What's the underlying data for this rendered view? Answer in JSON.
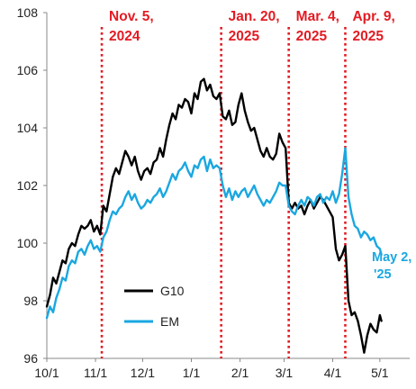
{
  "chart_data": {
    "type": "line",
    "title": "",
    "xlabel": "",
    "ylabel": "",
    "x_range": [
      "2024-10-01",
      "2025-05-20"
    ],
    "ylim": [
      96,
      108
    ],
    "y_ticks": [
      96,
      98,
      100,
      102,
      104,
      106,
      108
    ],
    "x_ticks": [
      {
        "date": "2024-10-01",
        "label": "10/1"
      },
      {
        "date": "2024-11-01",
        "label": "11/1"
      },
      {
        "date": "2024-12-01",
        "label": "12/1"
      },
      {
        "date": "2025-01-01",
        "label": "1/1"
      },
      {
        "date": "2025-02-01",
        "label": "2/1"
      },
      {
        "date": "2025-03-01",
        "label": "3/1"
      },
      {
        "date": "2025-04-01",
        "label": "4/1"
      },
      {
        "date": "2025-05-01",
        "label": "5/1"
      }
    ],
    "grid": false,
    "legend_position": "lower-center",
    "annotations": [
      {
        "date": "2024-11-05",
        "line1": "Nov. 5,",
        "line2": "2024"
      },
      {
        "date": "2025-01-20",
        "line1": "Jan. 20,",
        "line2": "2025"
      },
      {
        "date": "2025-03-04",
        "line1": "Mar. 4,",
        "line2": "2025"
      },
      {
        "date": "2025-04-09",
        "line1": "Apr. 9,",
        "line2": "2025"
      }
    ],
    "end_label": {
      "line1": "May 2,",
      "line2": "'25",
      "series": "EM"
    },
    "series": [
      {
        "name": "G10",
        "color": "#000000",
        "points": [
          [
            "2024-10-01",
            97.8
          ],
          [
            "2024-10-03",
            98.2
          ],
          [
            "2024-10-05",
            98.8
          ],
          [
            "2024-10-07",
            98.6
          ],
          [
            "2024-10-09",
            99.0
          ],
          [
            "2024-10-11",
            99.4
          ],
          [
            "2024-10-13",
            99.3
          ],
          [
            "2024-10-15",
            99.8
          ],
          [
            "2024-10-17",
            100.0
          ],
          [
            "2024-10-19",
            99.9
          ],
          [
            "2024-10-21",
            100.3
          ],
          [
            "2024-10-23",
            100.6
          ],
          [
            "2024-10-25",
            100.5
          ],
          [
            "2024-10-27",
            100.6
          ],
          [
            "2024-10-29",
            100.8
          ],
          [
            "2024-10-31",
            100.4
          ],
          [
            "2024-11-02",
            100.6
          ],
          [
            "2024-11-04",
            100.3
          ],
          [
            "2024-11-06",
            101.3
          ],
          [
            "2024-11-08",
            101.1
          ],
          [
            "2024-11-10",
            101.7
          ],
          [
            "2024-11-12",
            102.3
          ],
          [
            "2024-11-14",
            102.6
          ],
          [
            "2024-11-16",
            102.4
          ],
          [
            "2024-11-18",
            102.8
          ],
          [
            "2024-11-20",
            103.2
          ],
          [
            "2024-11-22",
            103.0
          ],
          [
            "2024-11-24",
            102.7
          ],
          [
            "2024-11-26",
            103.0
          ],
          [
            "2024-11-28",
            102.5
          ],
          [
            "2024-11-30",
            102.2
          ],
          [
            "2024-12-02",
            102.5
          ],
          [
            "2024-12-04",
            102.6
          ],
          [
            "2024-12-06",
            102.4
          ],
          [
            "2024-12-08",
            102.8
          ],
          [
            "2024-12-10",
            102.9
          ],
          [
            "2024-12-12",
            103.3
          ],
          [
            "2024-12-14",
            103.0
          ],
          [
            "2024-12-16",
            103.6
          ],
          [
            "2024-12-18",
            104.1
          ],
          [
            "2024-12-20",
            104.5
          ],
          [
            "2024-12-22",
            104.3
          ],
          [
            "2024-12-24",
            104.8
          ],
          [
            "2024-12-26",
            104.7
          ],
          [
            "2024-12-28",
            105.0
          ],
          [
            "2024-12-30",
            104.9
          ],
          [
            "2025-01-01",
            104.5
          ],
          [
            "2025-01-03",
            105.2
          ],
          [
            "2025-01-05",
            105.0
          ],
          [
            "2025-01-07",
            105.6
          ],
          [
            "2025-01-09",
            105.7
          ],
          [
            "2025-01-11",
            105.3
          ],
          [
            "2025-01-13",
            105.5
          ],
          [
            "2025-01-15",
            105.1
          ],
          [
            "2025-01-17",
            105.0
          ],
          [
            "2025-01-19",
            105.2
          ],
          [
            "2025-01-21",
            104.4
          ],
          [
            "2025-01-23",
            104.3
          ],
          [
            "2025-01-25",
            104.6
          ],
          [
            "2025-01-27",
            104.1
          ],
          [
            "2025-01-29",
            104.2
          ],
          [
            "2025-01-31",
            104.8
          ],
          [
            "2025-02-02",
            105.2
          ],
          [
            "2025-02-04",
            104.6
          ],
          [
            "2025-02-06",
            104.2
          ],
          [
            "2025-02-08",
            103.9
          ],
          [
            "2025-02-10",
            104.0
          ],
          [
            "2025-02-12",
            103.6
          ],
          [
            "2025-02-14",
            103.2
          ],
          [
            "2025-02-16",
            103.0
          ],
          [
            "2025-02-18",
            103.3
          ],
          [
            "2025-02-20",
            103.0
          ],
          [
            "2025-02-22",
            102.9
          ],
          [
            "2025-02-24",
            103.1
          ],
          [
            "2025-02-26",
            103.8
          ],
          [
            "2025-02-28",
            103.5
          ],
          [
            "2025-03-02",
            103.3
          ],
          [
            "2025-03-04",
            101.4
          ],
          [
            "2025-03-06",
            101.2
          ],
          [
            "2025-03-08",
            101.4
          ],
          [
            "2025-03-10",
            101.2
          ],
          [
            "2025-03-12",
            101.3
          ],
          [
            "2025-03-14",
            101.0
          ],
          [
            "2025-03-16",
            101.3
          ],
          [
            "2025-03-18",
            101.5
          ],
          [
            "2025-03-20",
            101.2
          ],
          [
            "2025-03-22",
            101.4
          ],
          [
            "2025-03-24",
            101.6
          ],
          [
            "2025-03-26",
            101.5
          ],
          [
            "2025-03-28",
            101.3
          ],
          [
            "2025-03-30",
            101.1
          ],
          [
            "2025-04-01",
            100.9
          ],
          [
            "2025-04-03",
            99.8
          ],
          [
            "2025-04-05",
            99.4
          ],
          [
            "2025-04-07",
            99.6
          ],
          [
            "2025-04-09",
            99.9
          ],
          [
            "2025-04-11",
            98.0
          ],
          [
            "2025-04-13",
            97.5
          ],
          [
            "2025-04-15",
            97.6
          ],
          [
            "2025-04-17",
            97.3
          ],
          [
            "2025-04-19",
            96.8
          ],
          [
            "2025-04-21",
            96.2
          ],
          [
            "2025-04-23",
            96.8
          ],
          [
            "2025-04-25",
            97.2
          ],
          [
            "2025-04-27",
            97.0
          ],
          [
            "2025-04-29",
            96.9
          ],
          [
            "2025-05-01",
            97.5
          ],
          [
            "2025-05-02",
            97.3
          ]
        ]
      },
      {
        "name": "EM",
        "color": "#1aa7e0",
        "points": [
          [
            "2024-10-01",
            97.4
          ],
          [
            "2024-10-03",
            97.8
          ],
          [
            "2024-10-05",
            97.6
          ],
          [
            "2024-10-07",
            98.1
          ],
          [
            "2024-10-09",
            98.4
          ],
          [
            "2024-10-11",
            98.8
          ],
          [
            "2024-10-13",
            98.7
          ],
          [
            "2024-10-15",
            99.2
          ],
          [
            "2024-10-17",
            99.4
          ],
          [
            "2024-10-19",
            99.3
          ],
          [
            "2024-10-21",
            99.7
          ],
          [
            "2024-10-23",
            99.8
          ],
          [
            "2024-10-25",
            99.6
          ],
          [
            "2024-10-27",
            99.9
          ],
          [
            "2024-10-29",
            100.1
          ],
          [
            "2024-10-31",
            99.8
          ],
          [
            "2024-11-02",
            99.9
          ],
          [
            "2024-11-04",
            99.7
          ],
          [
            "2024-11-06",
            100.2
          ],
          [
            "2024-11-08",
            100.4
          ],
          [
            "2024-11-10",
            100.8
          ],
          [
            "2024-11-12",
            101.1
          ],
          [
            "2024-11-14",
            101.0
          ],
          [
            "2024-11-16",
            101.2
          ],
          [
            "2024-11-18",
            101.3
          ],
          [
            "2024-11-20",
            101.6
          ],
          [
            "2024-11-22",
            101.8
          ],
          [
            "2024-11-24",
            101.5
          ],
          [
            "2024-11-26",
            101.7
          ],
          [
            "2024-11-28",
            101.4
          ],
          [
            "2024-11-30",
            101.2
          ],
          [
            "2024-12-02",
            101.3
          ],
          [
            "2024-12-04",
            101.5
          ],
          [
            "2024-12-06",
            101.4
          ],
          [
            "2024-12-08",
            101.6
          ],
          [
            "2024-12-10",
            101.7
          ],
          [
            "2024-12-12",
            101.9
          ],
          [
            "2024-12-14",
            101.6
          ],
          [
            "2024-12-16",
            101.8
          ],
          [
            "2024-12-18",
            102.1
          ],
          [
            "2024-12-20",
            102.4
          ],
          [
            "2024-12-22",
            102.2
          ],
          [
            "2024-12-24",
            102.5
          ],
          [
            "2024-12-26",
            102.6
          ],
          [
            "2024-12-28",
            102.8
          ],
          [
            "2024-12-30",
            102.5
          ],
          [
            "2025-01-01",
            102.3
          ],
          [
            "2025-01-03",
            102.7
          ],
          [
            "2025-01-05",
            102.6
          ],
          [
            "2025-01-07",
            102.9
          ],
          [
            "2025-01-09",
            103.0
          ],
          [
            "2025-01-11",
            102.5
          ],
          [
            "2025-01-13",
            102.9
          ],
          [
            "2025-01-15",
            102.6
          ],
          [
            "2025-01-17",
            102.7
          ],
          [
            "2025-01-19",
            102.6
          ],
          [
            "2025-01-21",
            102.0
          ],
          [
            "2025-01-23",
            101.6
          ],
          [
            "2025-01-25",
            101.9
          ],
          [
            "2025-01-27",
            101.5
          ],
          [
            "2025-01-29",
            101.8
          ],
          [
            "2025-01-31",
            101.6
          ],
          [
            "2025-02-02",
            101.8
          ],
          [
            "2025-02-04",
            101.9
          ],
          [
            "2025-02-06",
            101.6
          ],
          [
            "2025-02-08",
            101.8
          ],
          [
            "2025-02-10",
            102.0
          ],
          [
            "2025-02-12",
            101.7
          ],
          [
            "2025-02-14",
            101.5
          ],
          [
            "2025-02-16",
            101.3
          ],
          [
            "2025-02-18",
            101.5
          ],
          [
            "2025-02-20",
            101.4
          ],
          [
            "2025-02-22",
            101.6
          ],
          [
            "2025-02-24",
            101.8
          ],
          [
            "2025-02-26",
            102.1
          ],
          [
            "2025-02-28",
            102.0
          ],
          [
            "2025-03-02",
            102.0
          ],
          [
            "2025-03-04",
            101.3
          ],
          [
            "2025-03-06",
            101.1
          ],
          [
            "2025-03-08",
            101.0
          ],
          [
            "2025-03-10",
            101.3
          ],
          [
            "2025-03-12",
            101.5
          ],
          [
            "2025-03-14",
            101.3
          ],
          [
            "2025-03-16",
            101.6
          ],
          [
            "2025-03-18",
            101.5
          ],
          [
            "2025-03-20",
            101.3
          ],
          [
            "2025-03-22",
            101.6
          ],
          [
            "2025-03-24",
            101.7
          ],
          [
            "2025-03-26",
            101.4
          ],
          [
            "2025-03-28",
            101.6
          ],
          [
            "2025-03-30",
            101.5
          ],
          [
            "2025-04-01",
            101.8
          ],
          [
            "2025-04-03",
            101.4
          ],
          [
            "2025-04-05",
            101.7
          ],
          [
            "2025-04-07",
            102.4
          ],
          [
            "2025-04-09",
            103.3
          ],
          [
            "2025-04-11",
            101.6
          ],
          [
            "2025-04-13",
            101.0
          ],
          [
            "2025-04-15",
            100.6
          ],
          [
            "2025-04-17",
            100.5
          ],
          [
            "2025-04-19",
            100.2
          ],
          [
            "2025-04-21",
            100.4
          ],
          [
            "2025-04-23",
            100.3
          ],
          [
            "2025-04-25",
            100.1
          ],
          [
            "2025-04-27",
            100.2
          ],
          [
            "2025-04-29",
            99.9
          ],
          [
            "2025-05-01",
            99.8
          ],
          [
            "2025-05-02",
            99.6
          ]
        ]
      }
    ]
  }
}
